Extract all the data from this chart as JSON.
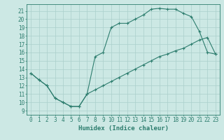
{
  "line1_x": [
    0,
    1,
    2,
    3,
    4,
    5,
    6,
    7,
    8,
    9,
    10,
    11,
    12,
    13,
    14,
    15,
    16,
    17,
    18,
    19,
    20,
    21,
    22,
    23
  ],
  "line1_y": [
    13.5,
    12.7,
    12.0,
    10.5,
    10.0,
    9.5,
    9.5,
    11.0,
    15.5,
    16.0,
    19.0,
    19.5,
    19.5,
    20.0,
    20.5,
    21.2,
    21.3,
    21.2,
    21.2,
    20.7,
    20.3,
    18.5,
    16.0,
    15.8
  ],
  "line2_x": [
    0,
    1,
    2,
    3,
    4,
    5,
    6,
    7,
    8,
    9,
    10,
    11,
    12,
    13,
    14,
    15,
    16,
    17,
    18,
    19,
    20,
    21,
    22,
    23
  ],
  "line2_y": [
    13.5,
    12.7,
    12.0,
    10.5,
    10.0,
    9.5,
    9.5,
    11.0,
    11.5,
    12.0,
    12.5,
    13.0,
    13.5,
    14.0,
    14.5,
    15.0,
    15.5,
    15.8,
    16.2,
    16.5,
    17.0,
    17.5,
    17.8,
    15.8
  ],
  "line_color": "#2d7d6e",
  "bg_color": "#cce8e4",
  "grid_color": "#aacfcb",
  "xlabel": "Humidex (Indice chaleur)",
  "xlim": [
    -0.5,
    23.5
  ],
  "ylim": [
    8.5,
    21.8
  ],
  "xticks": [
    0,
    1,
    2,
    3,
    4,
    5,
    6,
    7,
    8,
    9,
    10,
    11,
    12,
    13,
    14,
    15,
    16,
    17,
    18,
    19,
    20,
    21,
    22,
    23
  ],
  "yticks": [
    9,
    10,
    11,
    12,
    13,
    14,
    15,
    16,
    17,
    18,
    19,
    20,
    21
  ],
  "marker": "+",
  "markersize": 3,
  "linewidth": 0.8,
  "font_size": 5.5,
  "label_font_size": 6.5
}
